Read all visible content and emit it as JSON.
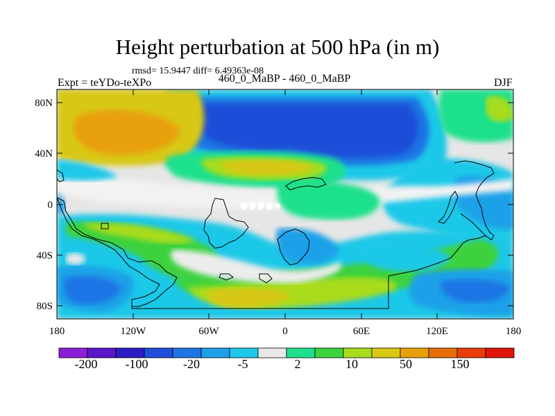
{
  "title": "Height perturbation at 500 hPa (in m)",
  "stats": "rmsd= 15.9447 diff= 6.49363e-08",
  "left_label": "Expt = teYDo-teXPo",
  "center_label": "460_0_MaBP - 460_0_MaBP",
  "right_label": "DJF",
  "map": {
    "y_ticks": [
      "80N",
      "40N",
      "0",
      "40S",
      "80S"
    ],
    "x_ticks": [
      "180",
      "120W",
      "60W",
      "0",
      "60E",
      "120E",
      "180"
    ]
  },
  "colorbar": {
    "colors": [
      "#8c1fd6",
      "#5a16c8",
      "#2a1ec4",
      "#1f4ed8",
      "#1e74e4",
      "#1ea0e8",
      "#1ec8e8",
      "#e8e8e8",
      "#1ee08c",
      "#3cd23c",
      "#a8dc1e",
      "#d8c814",
      "#e8a00a",
      "#e86e0a",
      "#e83c0a",
      "#e0140a"
    ],
    "labels": [
      "-200",
      "-100",
      "-20",
      "-5",
      "2",
      "10",
      "50",
      "150"
    ]
  }
}
